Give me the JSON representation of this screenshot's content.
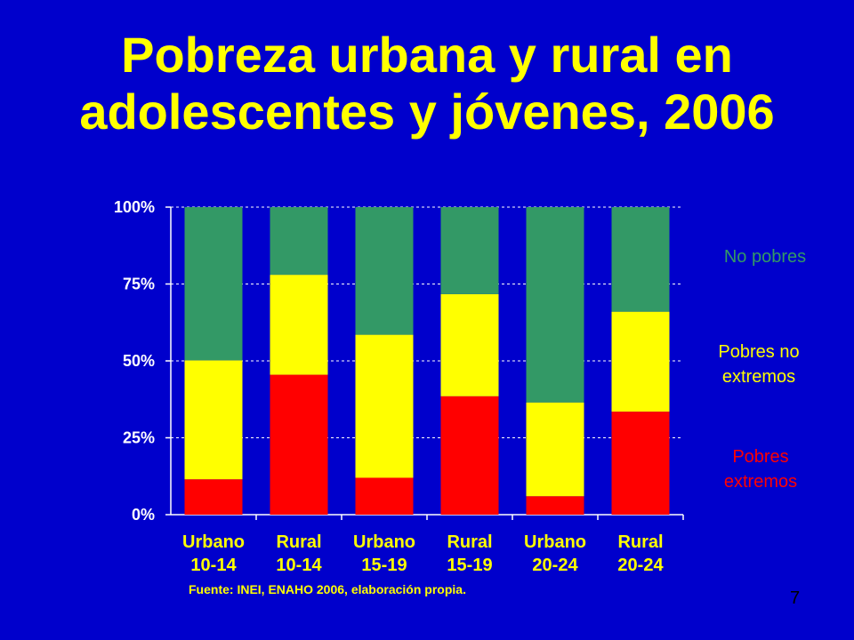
{
  "title_lines": [
    "Pobreza urbana y rural en",
    "adolescentes y jóvenes, 2006"
  ],
  "legend": [
    {
      "lines": [
        "No pobres"
      ],
      "color": "#339966"
    },
    {
      "lines": [
        "Pobres no",
        "extremos"
      ],
      "color": "#ffff00"
    },
    {
      "lines": [
        "Pobres",
        "extremos"
      ],
      "color": "#ff0000"
    }
  ],
  "source": "Fuente: INEI, ENAHO 2006, elaboración propia.",
  "slide_number": "7",
  "chart_data": {
    "type": "bar",
    "stacked": true,
    "categories": [
      [
        "Urbano",
        "10-14"
      ],
      [
        "Rural",
        "10-14"
      ],
      [
        "Urbano",
        "15-19"
      ],
      [
        "Rural",
        "15-19"
      ],
      [
        "Urbano",
        "20-24"
      ],
      [
        "Rural",
        "20-24"
      ]
    ],
    "series": [
      {
        "name": "Pobres extremos",
        "color": "#ff0000",
        "values": [
          11.5,
          45.5,
          12,
          38.5,
          6,
          33.5
        ]
      },
      {
        "name": "Pobres no extremos",
        "color": "#ffff00",
        "values": [
          38.7,
          32.5,
          46.5,
          33.2,
          30.5,
          32.5
        ]
      },
      {
        "name": "No pobres",
        "color": "#339966",
        "values": [
          49.8,
          22,
          41.5,
          28.3,
          63.5,
          34
        ]
      }
    ],
    "yticks": [
      "0%",
      "25%",
      "50%",
      "75%",
      "100%"
    ],
    "ylim": [
      0,
      100
    ],
    "grid": true,
    "legend_position": "right"
  }
}
